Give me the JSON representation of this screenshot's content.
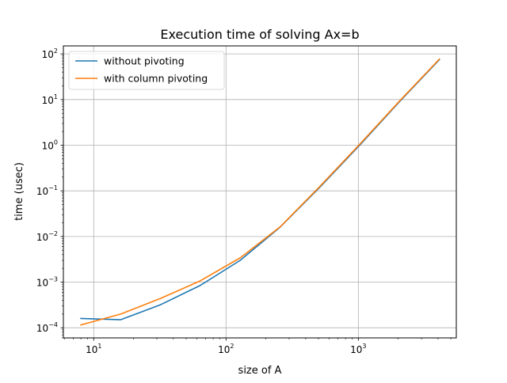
{
  "chart_data": {
    "type": "line",
    "title": "Execution time of solving Ax=b",
    "xlabel": "size of A",
    "ylabel": "time (usec)",
    "xscale": "log",
    "yscale": "log",
    "xlim": [
      5.9,
      5500
    ],
    "ylim": [
      6e-05,
      150
    ],
    "grid": true,
    "legend_position": "upper-left",
    "x_major_ticks": [
      {
        "value": 10,
        "base": "10",
        "exp": "1"
      },
      {
        "value": 100,
        "base": "10",
        "exp": "2"
      },
      {
        "value": 1000,
        "base": "10",
        "exp": "3"
      }
    ],
    "y_major_ticks": [
      {
        "value": 0.0001,
        "base": "10",
        "exp": "−4"
      },
      {
        "value": 0.001,
        "base": "10",
        "exp": "−3"
      },
      {
        "value": 0.01,
        "base": "10",
        "exp": "−2"
      },
      {
        "value": 0.1,
        "base": "10",
        "exp": "−1"
      },
      {
        "value": 1,
        "base": "10",
        "exp": "0"
      },
      {
        "value": 10,
        "base": "10",
        "exp": "1"
      },
      {
        "value": 100,
        "base": "10",
        "exp": "2"
      }
    ],
    "x": [
      8,
      16,
      32,
      64,
      128,
      256,
      512,
      1024,
      2048,
      4096
    ],
    "series": [
      {
        "name": "without pivoting",
        "color": "#1f77b4",
        "values": [
          0.00016,
          0.00015,
          0.00032,
          0.00085,
          0.003,
          0.016,
          0.12,
          1.0,
          9.0,
          75
        ]
      },
      {
        "name": "with column pivoting",
        "color": "#ff7f0e",
        "values": [
          0.000115,
          0.0002,
          0.00044,
          0.00107,
          0.0034,
          0.0162,
          0.125,
          1.05,
          9.3,
          77
        ]
      }
    ]
  }
}
